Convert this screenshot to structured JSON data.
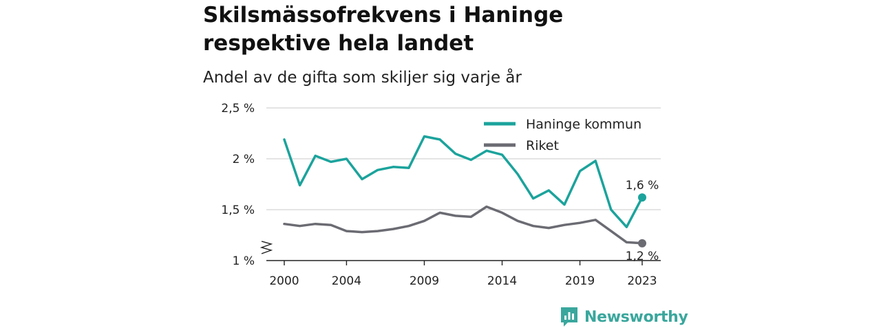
{
  "header": {
    "title_line1": "Skilsmässofrekvens i Haninge",
    "title_line2": "respektive hela landet",
    "subtitle": "Andel av de gifta som skiljer sig varje år"
  },
  "brand": {
    "name": "Newsworthy",
    "color": "#3aa79d"
  },
  "chart_data": {
    "type": "line",
    "title": "Skilsmässofrekvens i Haninge respektive hela landet",
    "subtitle": "Andel av de gifta som skiljer sig varje år",
    "x": [
      2000,
      2001,
      2002,
      2003,
      2004,
      2005,
      2006,
      2007,
      2008,
      2009,
      2010,
      2011,
      2012,
      2013,
      2014,
      2015,
      2016,
      2017,
      2018,
      2019,
      2020,
      2021,
      2022,
      2023
    ],
    "x_ticks": [
      2000,
      2004,
      2009,
      2014,
      2019,
      2023
    ],
    "x_tick_labels": [
      "2000",
      "2004",
      "2009",
      "2014",
      "2019",
      "2023"
    ],
    "y_ticks": [
      1,
      1.5,
      2,
      2.5
    ],
    "y_tick_labels": [
      "1 %",
      "1,5 %",
      "2 %",
      "2,5 %"
    ],
    "ylim": [
      1,
      2.5
    ],
    "y_axis_break": true,
    "grid": true,
    "legend_position": "top-right",
    "series": [
      {
        "name": "Haninge kommun",
        "color": "#1ba39c",
        "values": [
          2.19,
          1.74,
          2.03,
          1.97,
          2.0,
          1.8,
          1.89,
          1.92,
          1.91,
          2.22,
          2.19,
          2.05,
          1.99,
          2.08,
          2.04,
          1.85,
          1.61,
          1.69,
          1.55,
          1.88,
          1.98,
          1.5,
          1.33,
          1.62
        ],
        "end_label": "1,6 %"
      },
      {
        "name": "Riket",
        "color": "#6b6b73",
        "values": [
          1.36,
          1.34,
          1.36,
          1.35,
          1.29,
          1.28,
          1.29,
          1.31,
          1.34,
          1.39,
          1.47,
          1.44,
          1.43,
          1.53,
          1.47,
          1.39,
          1.34,
          1.32,
          1.35,
          1.37,
          1.4,
          1.29,
          1.18,
          1.17
        ],
        "end_label": "1,2 %"
      }
    ]
  }
}
